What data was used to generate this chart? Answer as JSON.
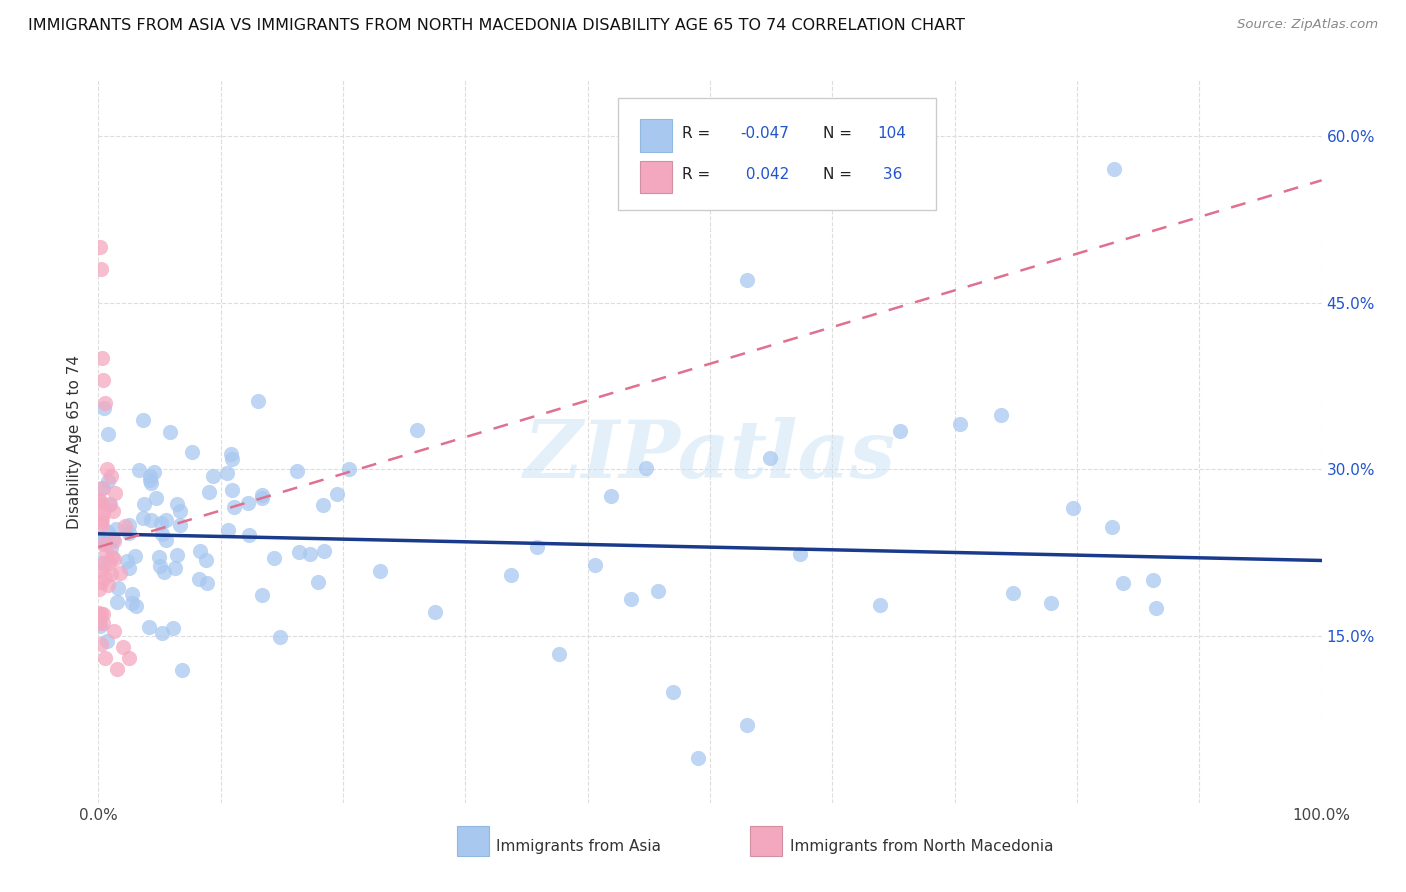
{
  "title": "IMMIGRANTS FROM ASIA VS IMMIGRANTS FROM NORTH MACEDONIA DISABILITY AGE 65 TO 74 CORRELATION CHART",
  "source": "Source: ZipAtlas.com",
  "ylabel": "Disability Age 65 to 74",
  "xlim": [
    0,
    1.0
  ],
  "ylim": [
    0,
    0.65
  ],
  "xtick_vals": [
    0.0,
    0.1,
    0.2,
    0.3,
    0.4,
    0.5,
    0.6,
    0.7,
    0.8,
    0.9,
    1.0
  ],
  "xtick_labels": [
    "0.0%",
    "",
    "",
    "",
    "",
    "",
    "",
    "",
    "",
    "",
    "100.0%"
  ],
  "ytick_vals": [
    0.15,
    0.3,
    0.45,
    0.6
  ],
  "ytick_labels": [
    "15.0%",
    "30.0%",
    "45.0%",
    "60.0%"
  ],
  "legend_label_asia": "Immigrants from Asia",
  "legend_label_macedonia": "Immigrants from North Macedonia",
  "R_asia": "-0.047",
  "N_asia": "104",
  "R_macedonia": "0.042",
  "N_macedonia": "36",
  "color_asia": "#a8c8f0",
  "color_macedonia": "#f4a8c0",
  "color_trendline_asia": "#1a3a8c",
  "color_trendline_macedonia": "#e07090",
  "color_r_value": "#2255cc",
  "watermark": "ZIPatlas",
  "asia_trendline_x": [
    0.0,
    1.0
  ],
  "asia_trendline_y": [
    0.242,
    0.218
  ],
  "mac_trendline_x": [
    0.0,
    1.0
  ],
  "mac_trendline_y": [
    0.23,
    0.56
  ]
}
